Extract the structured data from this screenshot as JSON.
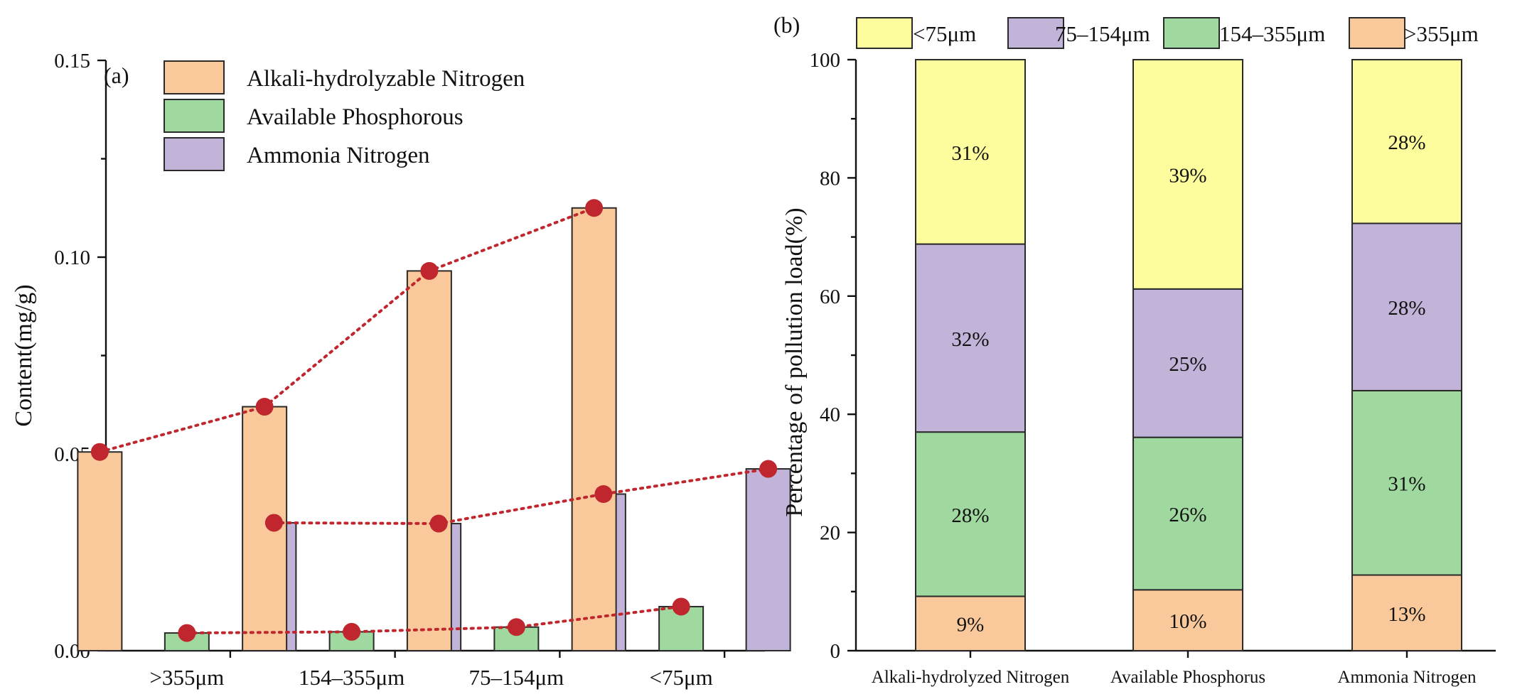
{
  "chart_data": [
    {
      "type": "bar",
      "panel_label": "(a)",
      "ylabel": "Content(mg/g)",
      "xlabel": "",
      "ylim": [
        0,
        0.15
      ],
      "yticks": [
        "0.00",
        "0.05",
        "0.10",
        "0.15"
      ],
      "ytick_values": [
        0,
        0.05,
        0.1,
        0.15
      ],
      "categories": [
        ">355μm",
        "154–355μm",
        "75–154μm",
        "<75μm"
      ],
      "legend_position": "top",
      "series": [
        {
          "name": "Alkali-hydrolyzable Nitrogen",
          "color": "#f9c99b",
          "values": [
            0.0505,
            0.062,
            0.0965,
            0.1125
          ]
        },
        {
          "name": "Available Phosphorous",
          "color": "#9fd99f",
          "values": [
            0.0045,
            0.0048,
            0.006,
            0.0112
          ]
        },
        {
          "name": "Ammonia Nitrogen",
          "color": "#c2b3d9",
          "values": [
            0.0325,
            0.0323,
            0.0398,
            0.0462
          ]
        }
      ],
      "trend_lines": "dotted red lines connecting each series across size fractions",
      "trend_color": "#c0262d"
    },
    {
      "type": "bar",
      "stacked": true,
      "panel_label": "(b)",
      "ylabel": "Percentage of pollution load(%)",
      "xlabel": "",
      "ylim": [
        0,
        100
      ],
      "yticks": [
        "0",
        "20",
        "40",
        "60",
        "80",
        "100"
      ],
      "ytick_values": [
        0,
        20,
        40,
        60,
        80,
        100
      ],
      "categories": [
        "Alkali-hydrolyzed Nitrogen",
        "Available Phosphorus",
        "Ammonia Nitrogen"
      ],
      "legend_position": "top",
      "legend_order": [
        "<75μm",
        "75–154μm",
        "154–355μm",
        ">355μm"
      ],
      "series": [
        {
          "name": ">355μm",
          "color": "#f9c99b",
          "values": [
            9.2,
            10.3,
            12.8
          ],
          "labels": [
            "9%",
            "10%",
            "13%"
          ]
        },
        {
          "name": "154–355μm",
          "color": "#9fd99f",
          "values": [
            27.8,
            25.8,
            31.2
          ],
          "labels": [
            "28%",
            "26%",
            "31%"
          ]
        },
        {
          "name": "75–154μm",
          "color": "#c2b3d9",
          "values": [
            31.8,
            25.1,
            28.3
          ],
          "labels": [
            "32%",
            "25%",
            "28%"
          ]
        },
        {
          "name": "<75μm",
          "color": "#fdfd9d",
          "values": [
            31.2,
            38.8,
            27.7
          ],
          "labels": [
            "31%",
            "39%",
            "28%"
          ]
        }
      ]
    }
  ]
}
